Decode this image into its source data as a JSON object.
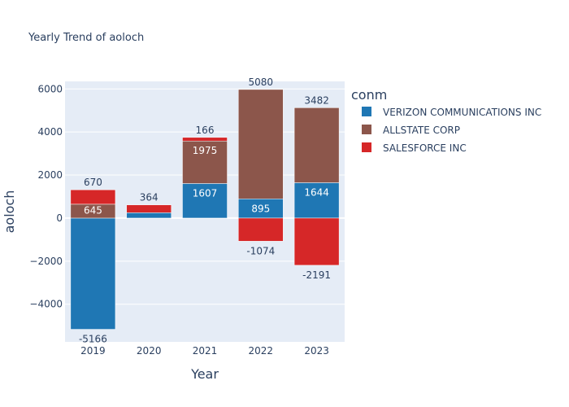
{
  "chart_data": {
    "type": "bar",
    "barmode": "relative",
    "title": "Yearly Trend of aoloch",
    "xlabel": "Year",
    "ylabel": "aoloch",
    "categories": [
      "2019",
      "2020",
      "2021",
      "2022",
      "2023"
    ],
    "ylim": [
      -5750,
      6350
    ],
    "yticks": [
      -4000,
      -2000,
      0,
      2000,
      4000,
      6000
    ],
    "ytick_labels": [
      "−4000",
      "−2000",
      "0",
      "2000",
      "4000",
      "6000"
    ],
    "legend_title": "conm",
    "grid": true,
    "legend_position": "right",
    "series": [
      {
        "name": "VERIZON COMMUNICATIONS INC",
        "color": "#1f77b4",
        "values": [
          -5166,
          250,
          1607,
          895,
          1644
        ],
        "labels": [
          "-5166",
          "",
          "1607",
          "895",
          "1644"
        ]
      },
      {
        "name": "ALLSTATE CORP",
        "color": "#8c564b",
        "values": [
          645,
          0,
          1975,
          5080,
          3482
        ],
        "labels": [
          "645",
          "",
          "1975",
          "5080",
          "3482"
        ]
      },
      {
        "name": "SALESFORCE INC",
        "color": "#d62728",
        "values": [
          670,
          364,
          166,
          -1074,
          -2191
        ],
        "labels": [
          "670",
          "364",
          "166",
          "-1074",
          "-2191"
        ]
      }
    ]
  }
}
